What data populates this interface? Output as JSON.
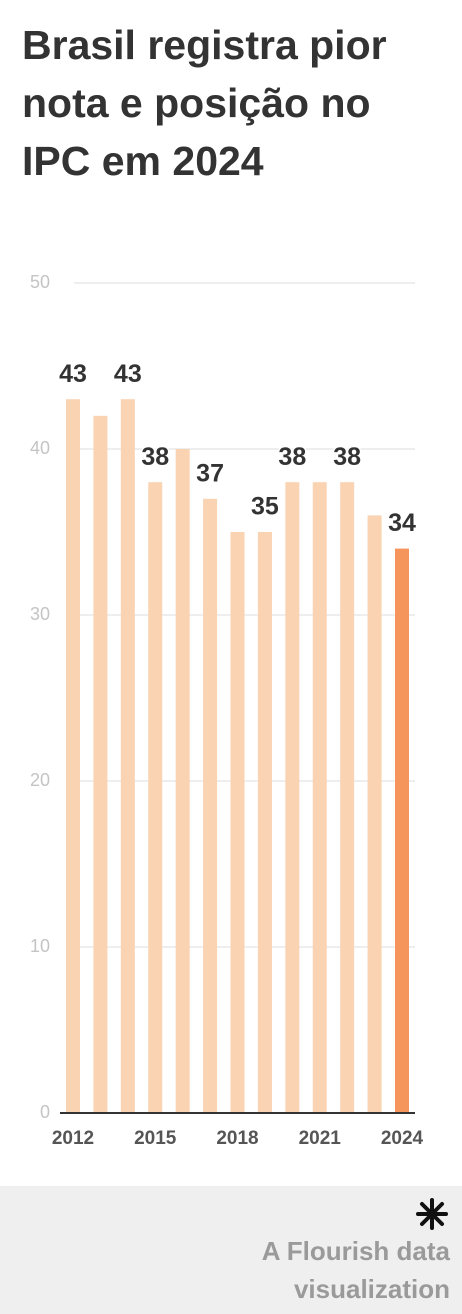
{
  "chart_data": {
    "type": "bar",
    "title": "Brasil registra pior nota e posição no IPC em 2024",
    "categories": [
      "2012",
      null,
      null,
      "2015",
      null,
      null,
      "2018",
      null,
      null,
      "2021",
      null,
      null,
      "2024"
    ],
    "values": [
      43,
      42,
      43,
      38,
      40,
      37,
      35,
      35,
      38,
      38,
      38,
      36,
      34
    ],
    "data_labels": [
      true,
      false,
      true,
      true,
      false,
      true,
      false,
      true,
      true,
      false,
      true,
      false,
      true
    ],
    "colors": [
      "#fad3b3",
      "#fad3b3",
      "#fad3b3",
      "#fad3b3",
      "#fad3b3",
      "#fad3b3",
      "#fad3b3",
      "#fad3b3",
      "#fad3b3",
      "#fad3b3",
      "#fad3b3",
      "#fad3b3",
      "#f5955c"
    ],
    "ylim": [
      0,
      50
    ],
    "yticks": [
      0,
      10,
      20,
      30,
      40,
      50
    ],
    "grid": true
  },
  "footer": {
    "credit": "A Flourish data visualization"
  }
}
